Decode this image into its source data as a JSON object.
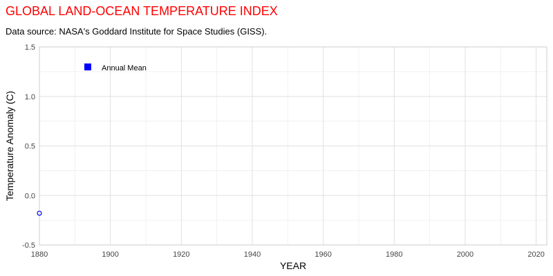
{
  "chart_data": {
    "type": "scatter",
    "title": "GLOBAL LAND-OCEAN TEMPERATURE INDEX",
    "subtitle": "Data source: NASA's Goddard Institute for Space Studies (GISS).",
    "xlabel": "YEAR",
    "ylabel": "Temperature Anomaly (C)",
    "xlim": [
      1880,
      2023
    ],
    "ylim": [
      -0.5,
      1.5
    ],
    "x_ticks": [
      1880,
      1900,
      1920,
      1940,
      1960,
      1980,
      2000,
      2020
    ],
    "y_ticks": [
      -0.5,
      0.0,
      0.5,
      1.0,
      1.5
    ],
    "y_tick_labels": [
      "-0.5",
      "0.0",
      "0.5",
      "1.0",
      "1.5"
    ],
    "grid": true,
    "legend": {
      "position": "top-left",
      "entries": [
        "Annual Mean"
      ]
    },
    "series": [
      {
        "name": "Annual Mean",
        "color": "#0000ff",
        "marker": "open-circle",
        "points": [
          {
            "x": 1880,
            "y": -0.18
          }
        ]
      }
    ]
  }
}
